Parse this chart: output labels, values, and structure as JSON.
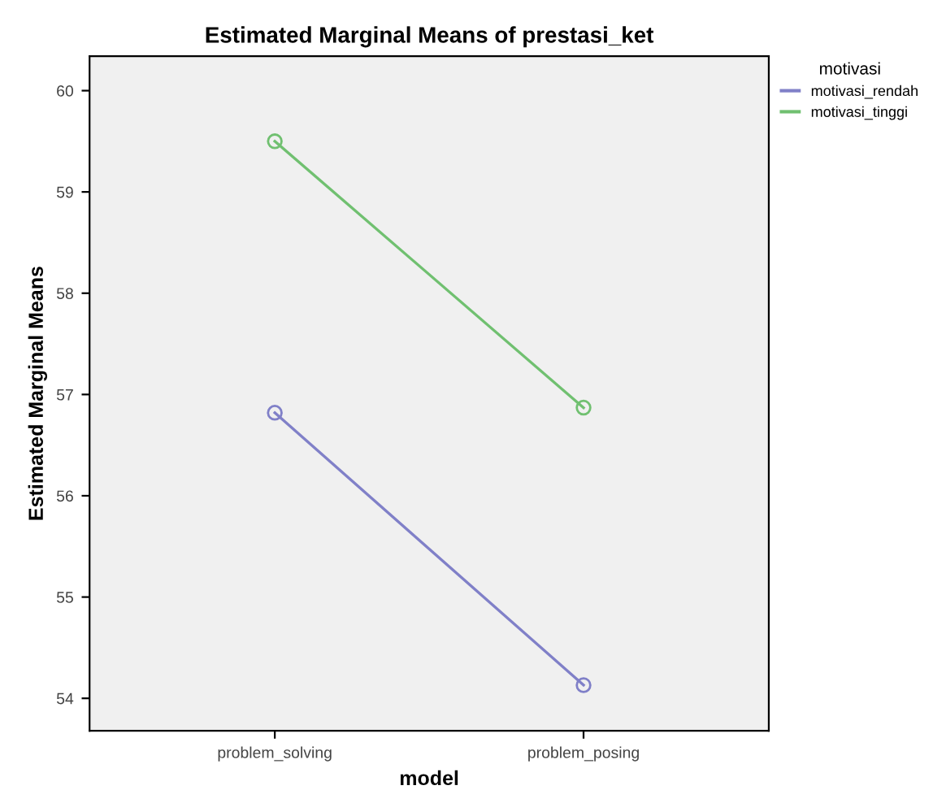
{
  "chart_data": {
    "type": "line",
    "title": "Estimated Marginal Means of prestasi_ket",
    "xlabel": "model",
    "ylabel": "Estimated Marginal Means",
    "legend_title": "motivasi",
    "categories": [
      "problem_solving",
      "problem_posing"
    ],
    "series": [
      {
        "name": "motivasi_rendah",
        "color": "#8080c8",
        "values": [
          56.82,
          54.13
        ]
      },
      {
        "name": "motivasi_tinggi",
        "color": "#70c070",
        "values": [
          59.5,
          56.87
        ]
      }
    ],
    "ylim": [
      53.68,
      60.34
    ],
    "yticks": [
      54,
      55,
      56,
      57,
      58,
      59,
      60
    ],
    "grid": false,
    "legend": "right",
    "marker": "circle",
    "line_style": "solid"
  }
}
